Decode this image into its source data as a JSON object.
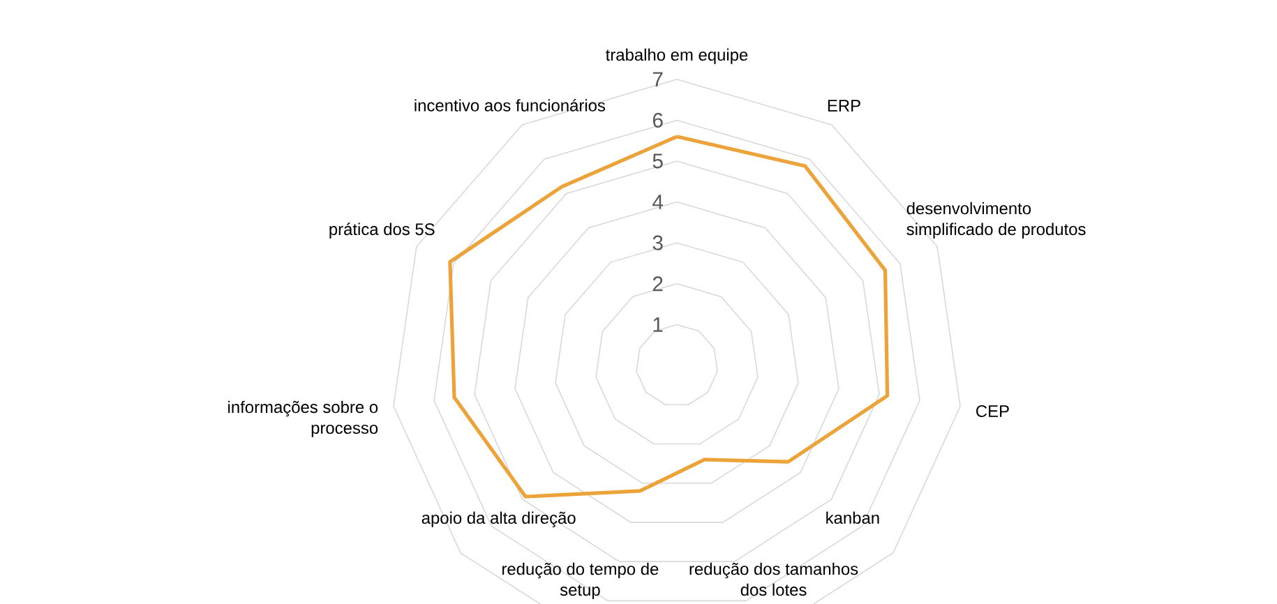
{
  "chart_data": {
    "type": "radar",
    "categories": [
      "trabalho em equipe",
      "ERP",
      "desenvolvimento simplificado de produtos",
      "CEP",
      "kanban",
      "redução dos tamanhos dos lotes",
      "redução do tempo de setup",
      "apoio da alta direção",
      "informações sobre o processo",
      "prática dos 5S",
      "incentivo aos funcionários"
    ],
    "series": [
      {
        "color": "#eba33a",
        "values": [
          5.6,
          5.8,
          5.6,
          5.2,
          3.6,
          2.4,
          3.2,
          4.9,
          5.5,
          6.1,
          5.2
        ]
      }
    ],
    "ylim": [
      0,
      7
    ],
    "yticks": [
      1,
      2,
      3,
      4,
      5,
      6,
      7
    ],
    "grid": true
  }
}
